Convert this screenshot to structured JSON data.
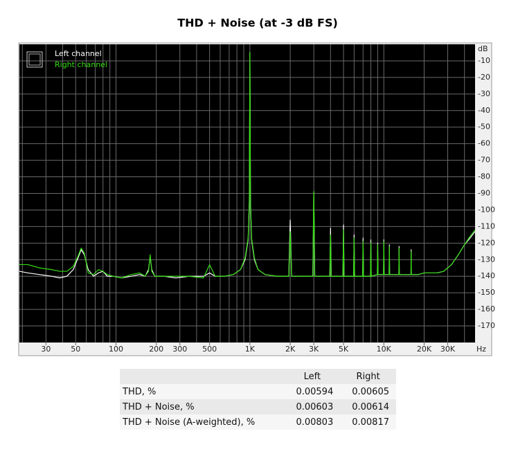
{
  "chart_data": {
    "type": "line",
    "title": "THD + Noise (at -3 dB FS)",
    "log_x": true,
    "grid": true,
    "legend": "top-left",
    "x_unit": "Hz",
    "y_unit": "dB",
    "xlim": [
      19,
      48000
    ],
    "ylim": [
      -180,
      0
    ],
    "xticks": [
      30,
      50,
      100,
      200,
      300,
      500,
      {
        "value": 1000,
        "label": "1K"
      },
      {
        "value": 2000,
        "label": "2K"
      },
      {
        "value": 3000,
        "label": "3K"
      },
      {
        "value": 5000,
        "label": "5K"
      },
      {
        "value": 10000,
        "label": "10K"
      },
      {
        "value": 20000,
        "label": "20K"
      },
      {
        "value": 30000,
        "label": "30K"
      }
    ],
    "xgrid": [
      20,
      30,
      40,
      50,
      60,
      70,
      80,
      90,
      100,
      200,
      300,
      400,
      500,
      600,
      700,
      800,
      900,
      1000,
      2000,
      3000,
      4000,
      5000,
      6000,
      7000,
      8000,
      9000,
      10000,
      20000,
      30000,
      40000
    ],
    "yticks": [
      -10,
      -20,
      -30,
      -40,
      -50,
      -60,
      -70,
      -80,
      -90,
      -100,
      -110,
      -120,
      -130,
      -140,
      -150,
      -160,
      -170
    ],
    "x": [
      19,
      22,
      27,
      33,
      38,
      43,
      48,
      52,
      55,
      58,
      62,
      68,
      74,
      80,
      86,
      95,
      110,
      130,
      150,
      165,
      175,
      180,
      185,
      195,
      230,
      280,
      350,
      450,
      500,
      550,
      650,
      750,
      850,
      920,
      970,
      990,
      1000,
      1010,
      1030,
      1080,
      1150,
      1300,
      1600,
      1950,
      2000,
      2050,
      2500,
      2950,
      3000,
      3050,
      3500,
      3950,
      4000,
      4050,
      4500,
      4950,
      5000,
      5050,
      5950,
      6000,
      6050,
      6950,
      7000,
      7050,
      7950,
      8000,
      8050,
      8950,
      9000,
      9050,
      9950,
      10000,
      10050,
      10950,
      11000,
      11050,
      12950,
      13000,
      13050,
      15950,
      16000,
      16050,
      18000,
      20000,
      22000,
      25000,
      28000,
      32000,
      36000,
      40000,
      44000,
      48000
    ],
    "series": [
      {
        "name": "Left channel",
        "color": "#ffffff",
        "values": [
          -137,
          -138,
          -139,
          -140,
          -141,
          -140,
          -136,
          -129,
          -124,
          -127,
          -136,
          -140,
          -138,
          -137,
          -140,
          -140,
          -141,
          -140,
          -139,
          -140,
          -136,
          -128,
          -136,
          -140,
          -140,
          -141,
          -140,
          -140,
          -138,
          -140,
          -140,
          -139,
          -136,
          -130,
          -118,
          -95,
          -5,
          -95,
          -118,
          -130,
          -136,
          -139,
          -140,
          -140,
          -106,
          -140,
          -140,
          -140,
          -89,
          -140,
          -140,
          -140,
          -111,
          -140,
          -140,
          -140,
          -109,
          -140,
          -140,
          -115,
          -140,
          -140,
          -117,
          -140,
          -140,
          -118,
          -140,
          -139,
          -120,
          -139,
          -139,
          -118,
          -139,
          -139,
          -121,
          -139,
          -139,
          -122,
          -139,
          -139,
          -124,
          -139,
          -139,
          -138,
          -138,
          -138,
          -137,
          -133,
          -127,
          -121,
          -117,
          -113
        ]
      },
      {
        "name": "Right channel",
        "color": "#33dd11",
        "values": [
          -133,
          -133,
          -135,
          -136,
          -137,
          -137,
          -134,
          -128,
          -123,
          -126,
          -138,
          -139,
          -136,
          -137,
          -139,
          -140,
          -141,
          -139,
          -138,
          -140,
          -137,
          -127,
          -137,
          -140,
          -140,
          -140,
          -140,
          -141,
          -133,
          -140,
          -140,
          -139,
          -136,
          -129,
          -117,
          -94,
          -5,
          -94,
          -117,
          -129,
          -136,
          -139,
          -140,
          -140,
          -113,
          -140,
          -140,
          -140,
          -89,
          -140,
          -140,
          -140,
          -115,
          -140,
          -140,
          -140,
          -112,
          -140,
          -140,
          -117,
          -140,
          -140,
          -119,
          -140,
          -140,
          -120,
          -140,
          -139,
          -121,
          -139,
          -139,
          -119,
          -139,
          -139,
          -122,
          -139,
          -139,
          -123,
          -139,
          -139,
          -125,
          -139,
          -139,
          -138,
          -138,
          -138,
          -137,
          -133,
          -127,
          -121,
          -116,
          -112
        ]
      }
    ]
  },
  "table": {
    "header": [
      "Left",
      "Right"
    ],
    "rows": [
      [
        "THD, %",
        "0.00594",
        "0.00605"
      ],
      [
        "THD + Noise, %",
        "0.00603",
        "0.00614"
      ],
      [
        "THD + Noise (A-weighted), %",
        "0.00803",
        "0.00817"
      ]
    ]
  }
}
